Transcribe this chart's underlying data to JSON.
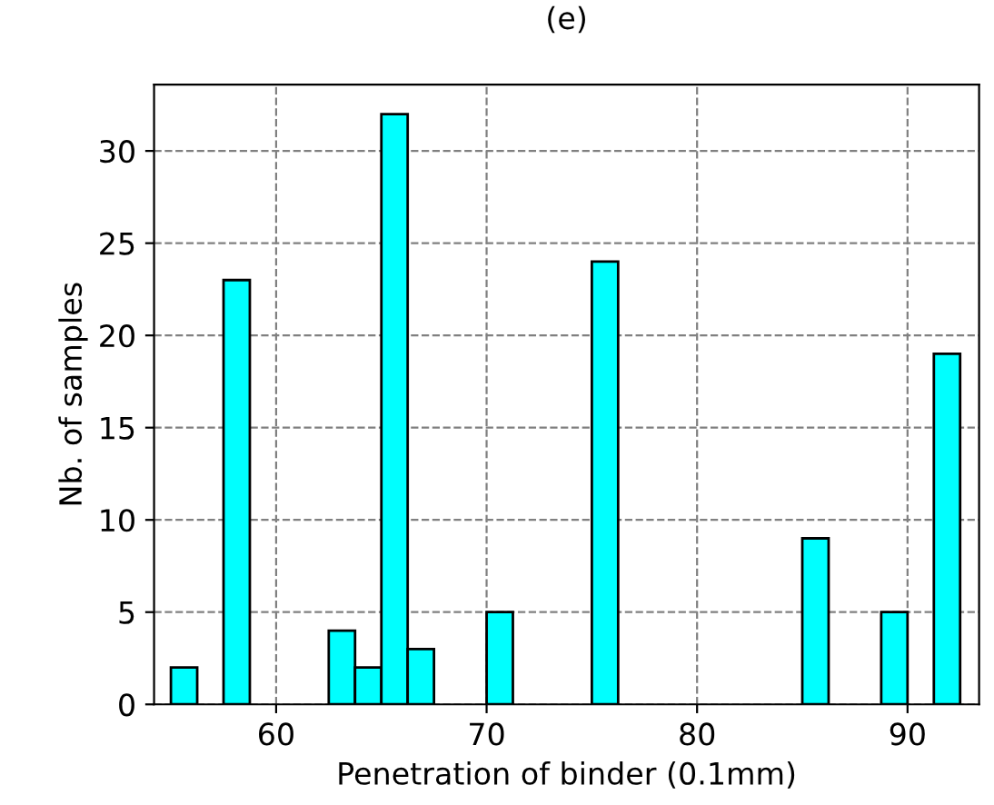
{
  "chart_data": {
    "type": "histogram",
    "title": "(e)",
    "xlabel": "Penetration of binder (0.1mm)",
    "ylabel": "Nb. of samples",
    "bins": [
      55,
      56.25,
      57.5,
      58.75,
      60,
      61.25,
      62.5,
      63.75,
      65,
      66.25,
      67.5,
      68.75,
      70,
      71.25,
      72.5,
      73.75,
      75,
      76.25,
      77.5,
      78.75,
      80,
      81.25,
      82.5,
      83.75,
      85,
      86.25,
      87.5,
      88.75,
      90,
      91.25,
      92.5
    ],
    "values": [
      2,
      0,
      23,
      0,
      0,
      0,
      4,
      2,
      32,
      3,
      0,
      0,
      5,
      0,
      0,
      0,
      24,
      0,
      0,
      0,
      0,
      0,
      0,
      0,
      9,
      0,
      0,
      5,
      0,
      19
    ],
    "color": "#00ffff",
    "xlim": [
      54.2,
      93.4
    ],
    "ylim": [
      0,
      33.6
    ],
    "xticks": [
      60,
      70,
      80,
      90
    ],
    "yticks": [
      0,
      5,
      10,
      15,
      20,
      25,
      30
    ],
    "grid": true
  }
}
